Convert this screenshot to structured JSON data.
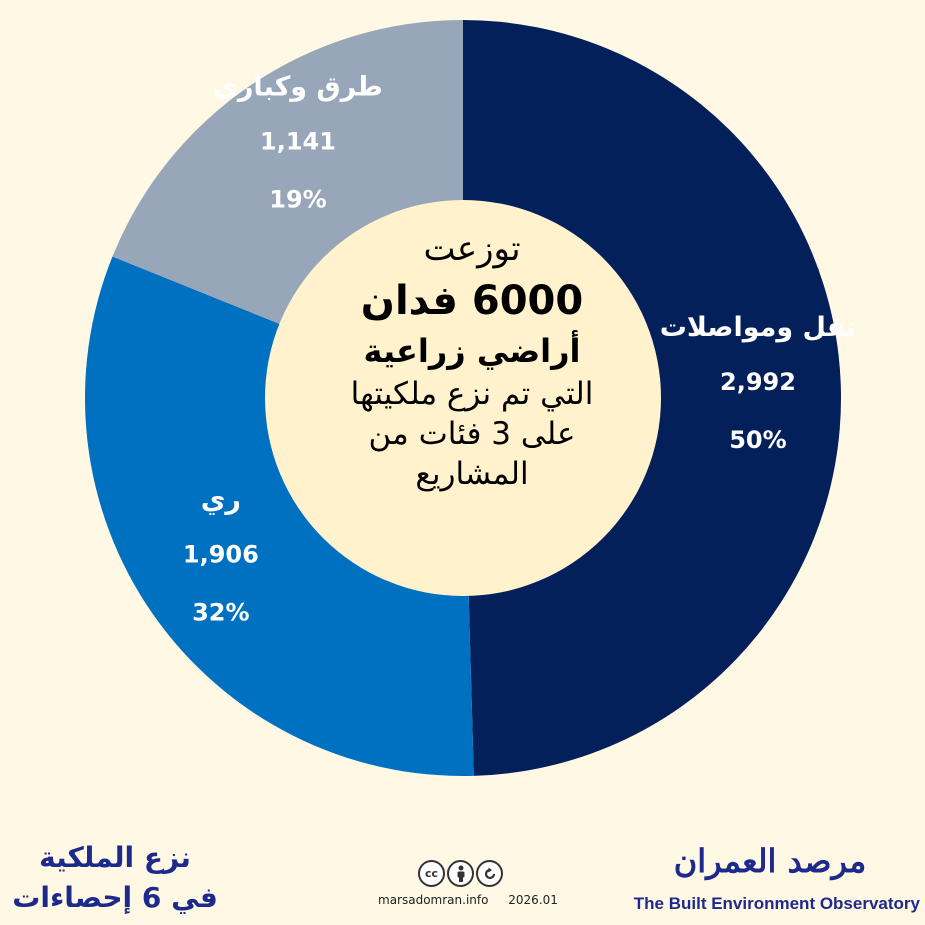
{
  "chart_data": {
    "type": "pie",
    "variant": "donut",
    "start": "top",
    "direction": "clockwise",
    "slices": [
      {
        "label": "نقل ومواصلات",
        "value": 2992,
        "value_text": "2,992",
        "percent_text": "50%",
        "color": "#04205b"
      },
      {
        "label": "ري",
        "value": 1906,
        "value_text": "1,906",
        "percent_text": "32%",
        "color": "#0070c0"
      },
      {
        "label": "طرق وكباري",
        "value": 1141,
        "value_text": "1,141",
        "percent_text": "19%",
        "color": "#97a6b8"
      }
    ],
    "center_color": "#fff2cc"
  },
  "center": {
    "line1": "توزعت",
    "line2": "6000 فدان",
    "line3": "أراضي زراعية",
    "line4": "التي تم نزع ملكيتها",
    "line5": "على 3 فئات من",
    "line6": "المشاريع"
  },
  "footer": {
    "series_title_line1": "نزع الملكية",
    "series_title_line2": "في 6 إحصاءات",
    "website": "marsadomran.info",
    "date": "2026.01",
    "license_icons": [
      "cc-icon",
      "by-icon",
      "sa-icon"
    ],
    "brand_ar": "مرصد العمران",
    "brand_en": "The Built Environment Observatory"
  }
}
